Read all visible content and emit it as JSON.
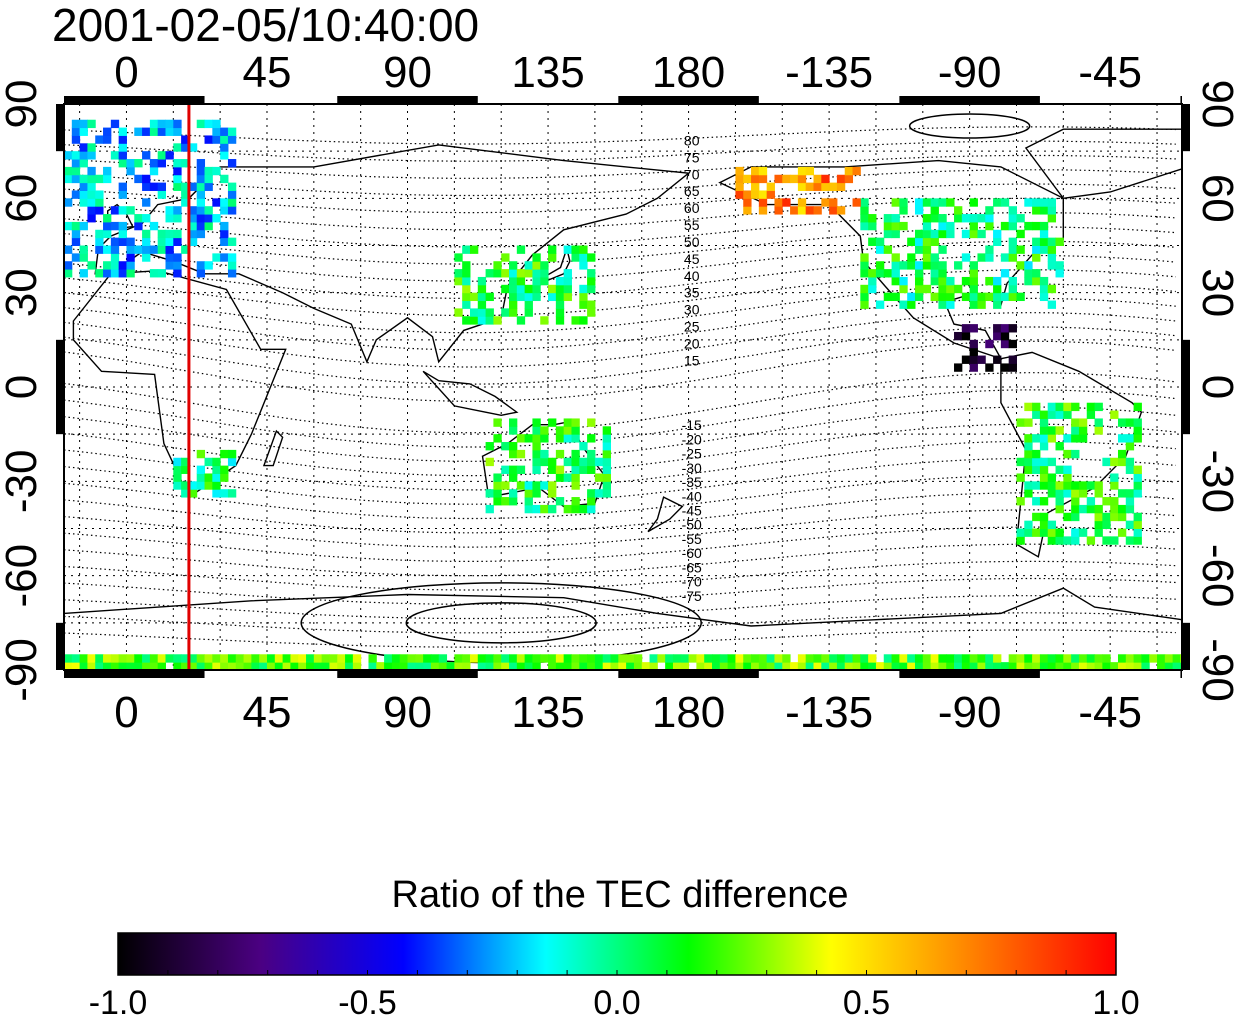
{
  "title": "2001-02-05/10:40:00",
  "map": {
    "projection": "equirectangular",
    "central_longitude": 0,
    "lon_range": [
      -20,
      338
    ],
    "lat_range": [
      -90,
      90
    ],
    "x_tick_labels": [
      "0",
      "45",
      "90",
      "135",
      "180",
      "-135",
      "-90",
      "-45"
    ],
    "x_tick_lons": [
      0,
      45,
      90,
      135,
      180,
      225,
      270,
      315
    ],
    "y_tick_labels_left": [
      "90",
      "60",
      "30",
      "0",
      "-30",
      "-60",
      "-90"
    ],
    "y_tick_labels_right": [
      "90",
      "60",
      "30",
      "0",
      "-30",
      "-60",
      "-90"
    ],
    "y_tick_lats": [
      90,
      60,
      30,
      0,
      -30,
      -60,
      -90
    ],
    "grid": true,
    "red_meridian_lon": 20,
    "red_meridian_color": "#e00000",
    "contour_labels_north": [
      "80",
      "75",
      "70",
      "65",
      "60",
      "55",
      "50",
      "45",
      "40",
      "35",
      "30",
      "25",
      "20",
      "15"
    ],
    "contour_labels_south": [
      "-15",
      "-20",
      "-25",
      "-30",
      "-35",
      "-40",
      "-45",
      "-50",
      "-55",
      "-60",
      "-65",
      "-70",
      "-75"
    ]
  },
  "colorbar": {
    "title": "Ratio of the TEC difference",
    "min": -1.0,
    "max": 1.0,
    "tick_labels": [
      "-1.0",
      "-0.5",
      "0.0",
      "0.5",
      "1.0"
    ],
    "tick_values": [
      -1.0,
      -0.5,
      0.0,
      0.5,
      1.0
    ],
    "colors": [
      "#000000",
      "#4b0082",
      "#0000ff",
      "#00ffff",
      "#00ff00",
      "#ffff00",
      "#ff8000",
      "#ff0000"
    ]
  },
  "data_regions": [
    {
      "name": "europe",
      "lon": [
        -20,
        35
      ],
      "lat": [
        35,
        85
      ],
      "value": -0.2
    },
    {
      "name": "east-asia",
      "lon": [
        105,
        150
      ],
      "lat": [
        20,
        45
      ],
      "value": 0.1
    },
    {
      "name": "north-america",
      "lon": [
        235,
        300
      ],
      "lat": [
        25,
        60
      ],
      "value": 0.05
    },
    {
      "name": "alaska",
      "lon": [
        195,
        235
      ],
      "lat": [
        55,
        70
      ],
      "value": 0.7
    },
    {
      "name": "caribbean",
      "lon": [
        265,
        285
      ],
      "lat": [
        5,
        20
      ],
      "value": -0.95
    },
    {
      "name": "australia",
      "lon": [
        115,
        155
      ],
      "lat": [
        -40,
        -10
      ],
      "value": 0.1
    },
    {
      "name": "south-africa",
      "lon": [
        15,
        35
      ],
      "lat": [
        -35,
        -20
      ],
      "value": 0.05
    },
    {
      "name": "south-america",
      "lon": [
        285,
        325
      ],
      "lat": [
        -50,
        -5
      ],
      "value": 0.1
    },
    {
      "name": "antarctica-strip",
      "lon": [
        -20,
        338
      ],
      "lat": [
        -90,
        -85
      ],
      "value": 0.2
    }
  ]
}
